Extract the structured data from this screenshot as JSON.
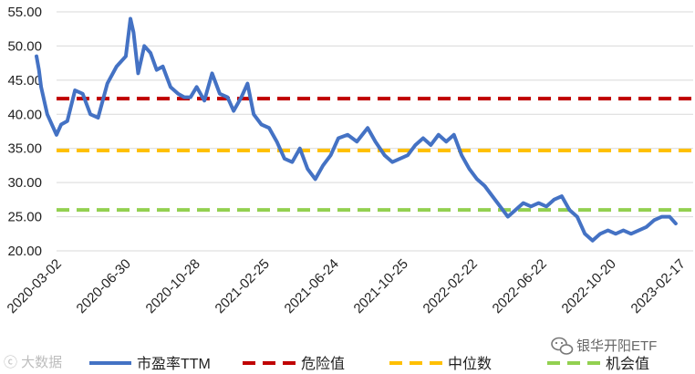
{
  "chart_data": {
    "type": "line",
    "x_tick_labels": [
      "2020-03-02",
      "2020-06-30",
      "2020-10-28",
      "2021-02-25",
      "2021-06-24",
      "2021-10-25",
      "2022-02-22",
      "2022-06-22",
      "2022-10-20",
      "2023-02-17"
    ],
    "y_tick_labels": [
      "20.00",
      "25.00",
      "30.00",
      "35.00",
      "40.00",
      "45.00",
      "50.00",
      "55.00"
    ],
    "ylim": [
      20,
      55
    ],
    "grid": "horizontal",
    "legend_placement": "bottom",
    "series": [
      {
        "name": "市盈率TTM",
        "color": "#4472C4",
        "style": "solid",
        "values": [
          [
            0,
            48.5
          ],
          [
            0.08,
            46.5
          ],
          [
            0.15,
            44
          ],
          [
            0.25,
            42
          ],
          [
            0.35,
            40
          ],
          [
            0.5,
            38.5
          ],
          [
            0.65,
            37
          ],
          [
            0.8,
            38.5
          ],
          [
            1,
            39
          ],
          [
            1.25,
            43.5
          ],
          [
            1.5,
            43
          ],
          [
            1.75,
            40
          ],
          [
            2,
            39.5
          ],
          [
            2.3,
            44.5
          ],
          [
            2.6,
            47
          ],
          [
            2.9,
            48.5
          ],
          [
            3.05,
            54
          ],
          [
            3.15,
            52
          ],
          [
            3.3,
            46
          ],
          [
            3.5,
            50
          ],
          [
            3.7,
            49
          ],
          [
            3.9,
            46.5
          ],
          [
            4.1,
            47
          ],
          [
            4.35,
            44
          ],
          [
            4.6,
            43
          ],
          [
            4.8,
            42.5
          ],
          [
            5,
            42.5
          ],
          [
            5.2,
            44
          ],
          [
            5.45,
            42
          ],
          [
            5.7,
            46
          ],
          [
            5.95,
            43
          ],
          [
            6.2,
            42.5
          ],
          [
            6.4,
            40.5
          ],
          [
            6.65,
            42.5
          ],
          [
            6.85,
            44.5
          ],
          [
            7.05,
            40
          ],
          [
            7.3,
            38.5
          ],
          [
            7.55,
            38
          ],
          [
            7.8,
            36
          ],
          [
            8.05,
            33.5
          ],
          [
            8.3,
            33
          ],
          [
            8.55,
            35
          ],
          [
            8.8,
            32
          ],
          [
            9.05,
            30.5
          ],
          [
            9.3,
            32.5
          ],
          [
            9.55,
            34
          ],
          [
            9.8,
            36.5
          ],
          [
            10.1,
            37
          ],
          [
            10.4,
            36
          ],
          [
            10.75,
            38
          ],
          [
            11,
            36
          ],
          [
            11.3,
            34
          ],
          [
            11.55,
            33
          ],
          [
            11.8,
            33.5
          ],
          [
            12.05,
            34
          ],
          [
            12.3,
            35.5
          ],
          [
            12.55,
            36.5
          ],
          [
            12.8,
            35.5
          ],
          [
            13.05,
            37
          ],
          [
            13.3,
            36
          ],
          [
            13.55,
            37
          ],
          [
            13.8,
            34
          ],
          [
            14.05,
            32
          ],
          [
            14.3,
            30.5
          ],
          [
            14.55,
            29.5
          ],
          [
            14.8,
            28
          ],
          [
            15.05,
            26.5
          ],
          [
            15.3,
            25
          ],
          [
            15.55,
            26
          ],
          [
            15.8,
            27
          ],
          [
            16.05,
            26.5
          ],
          [
            16.3,
            27
          ],
          [
            16.55,
            26.5
          ],
          [
            16.8,
            27.5
          ],
          [
            17.05,
            28
          ],
          [
            17.3,
            26
          ],
          [
            17.55,
            25
          ],
          [
            17.8,
            22.5
          ],
          [
            18.05,
            21.5
          ],
          [
            18.3,
            22.5
          ],
          [
            18.55,
            23
          ],
          [
            18.8,
            22.5
          ],
          [
            19.05,
            23
          ],
          [
            19.3,
            22.5
          ],
          [
            19.55,
            23
          ],
          [
            19.8,
            23.5
          ],
          [
            20.05,
            24.5
          ],
          [
            20.3,
            25
          ],
          [
            20.55,
            25
          ],
          [
            20.75,
            24
          ]
        ]
      },
      {
        "name": "危险值",
        "color": "#C00000",
        "style": "dashed",
        "value": 42.3
      },
      {
        "name": "中位数",
        "color": "#FFC000",
        "style": "dashed",
        "value": 34.7
      },
      {
        "name": "机会值",
        "color": "#92D050",
        "style": "dashed",
        "value": 26.0
      }
    ]
  },
  "watermarks": {
    "source_text": "ⓒ 大数据",
    "account_text": "银华开阳ETF"
  },
  "icons": {
    "wechat": "wechat-icon"
  }
}
